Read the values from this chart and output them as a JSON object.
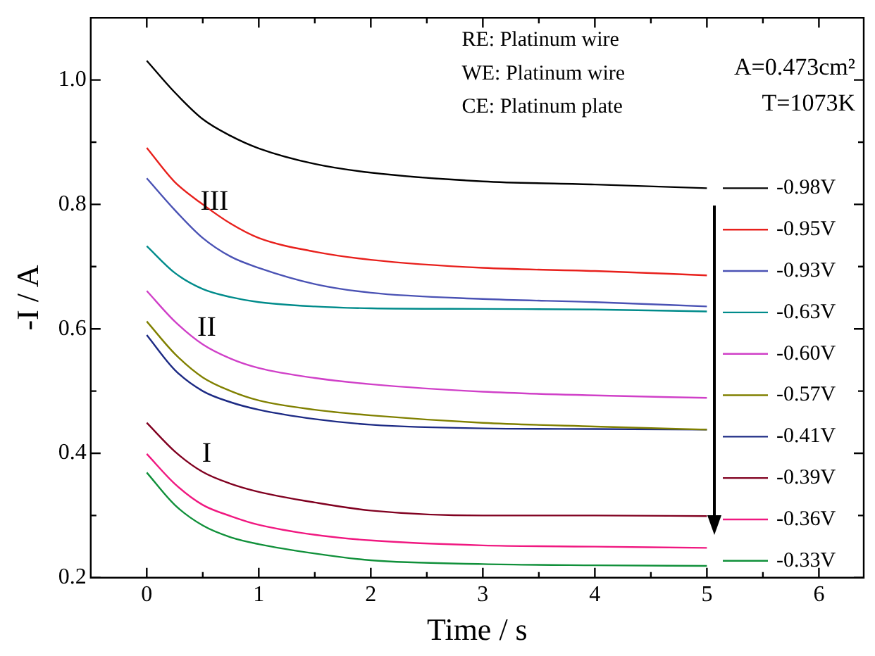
{
  "chart_data": {
    "type": "line",
    "xlabel": "Time / s",
    "ylabel": "-I / A",
    "x": [
      0,
      0.25,
      0.5,
      0.75,
      1,
      1.5,
      2,
      3,
      4,
      5
    ],
    "xlim": [
      -0.5,
      6.4
    ],
    "ylim": [
      0.2,
      1.1
    ],
    "xticks": [
      0,
      {
        "value": 0.5,
        "label": null
      },
      1,
      {
        "value": 1.5,
        "label": null
      },
      2,
      {
        "value": 2.5,
        "label": null
      },
      3,
      {
        "value": 3.5,
        "label": null
      },
      4,
      {
        "value": 4.5,
        "label": null
      },
      5,
      {
        "value": 5.5,
        "label": null
      },
      6
    ],
    "yticks": [
      0.2,
      {
        "value": 0.3,
        "label": null
      },
      0.4,
      {
        "value": 0.5,
        "label": null
      },
      0.6,
      {
        "value": 0.7,
        "label": null
      },
      0.8,
      {
        "value": 0.9,
        "label": null
      },
      {
        "value": 1.0,
        "label": "1.0"
      }
    ],
    "grid": false,
    "legend": "right",
    "marker": "none",
    "line_style": "solid",
    "series": [
      {
        "name": "-0.98V",
        "color": "#000000",
        "values": [
          1.031,
          0.98,
          0.937,
          0.91,
          0.89,
          0.865,
          0.851,
          0.837,
          0.832,
          0.826
        ]
      },
      {
        "name": "-0.95V",
        "color": "#e8201c",
        "values": [
          0.891,
          0.836,
          0.8,
          0.769,
          0.746,
          0.724,
          0.711,
          0.698,
          0.693,
          0.686
        ]
      },
      {
        "name": "-0.93V",
        "color": "#4a52b4",
        "values": [
          0.842,
          0.791,
          0.746,
          0.716,
          0.698,
          0.672,
          0.658,
          0.648,
          0.643,
          0.636
        ]
      },
      {
        "name": "-0.63V",
        "color": "#008b8b",
        "values": [
          0.733,
          0.69,
          0.664,
          0.651,
          0.643,
          0.636,
          0.633,
          0.632,
          0.631,
          0.628
        ]
      },
      {
        "name": "-0.60V",
        "color": "#d040c8",
        "values": [
          0.661,
          0.612,
          0.575,
          0.552,
          0.537,
          0.521,
          0.511,
          0.499,
          0.493,
          0.489
        ]
      },
      {
        "name": "-0.57V",
        "color": "#808000",
        "values": [
          0.612,
          0.56,
          0.522,
          0.5,
          0.485,
          0.47,
          0.461,
          0.449,
          0.443,
          0.438
        ]
      },
      {
        "name": "-0.41V",
        "color": "#1c2a84",
        "values": [
          0.59,
          0.534,
          0.5,
          0.482,
          0.47,
          0.455,
          0.446,
          0.44,
          0.439,
          0.438
        ]
      },
      {
        "name": "-0.39V",
        "color": "#800020",
        "values": [
          0.449,
          0.403,
          0.37,
          0.351,
          0.338,
          0.321,
          0.308,
          0.3,
          0.3,
          0.299
        ]
      },
      {
        "name": "-0.36V",
        "color": "#f01880",
        "values": [
          0.399,
          0.351,
          0.317,
          0.299,
          0.285,
          0.269,
          0.26,
          0.252,
          0.25,
          0.248
        ]
      },
      {
        "name": "-0.33V",
        "color": "#10903a",
        "values": [
          0.369,
          0.317,
          0.284,
          0.265,
          0.254,
          0.239,
          0.228,
          0.222,
          0.22,
          0.219
        ]
      }
    ],
    "annotations": [
      "RE: Platinum wire",
      "WE: Platinum wire",
      "CE: Platinum plate",
      "A=0.473cm²",
      "T=1073K",
      "III",
      "II",
      "I"
    ]
  }
}
